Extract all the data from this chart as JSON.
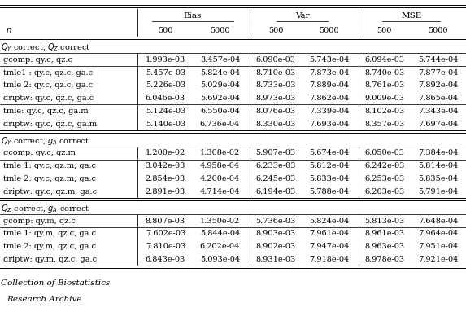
{
  "sections": [
    {
      "header": "$Q_Y$ correct, $Q_Z$ correct",
      "rows": [
        [
          "gcomp: qy.c, qz.c",
          "1.993e-03",
          "3.457e-04",
          "6.090e-03",
          "5.743e-04",
          "6.094e-03",
          "5.744e-04"
        ],
        [
          "tmle1 : qy.c, qz.c, ga.c",
          "5.457e-03",
          "5.824e-04",
          "8.710e-03",
          "7.873e-04",
          "8.740e-03",
          "7.877e-04"
        ],
        [
          "tmle 2: qy.c, qz.c, ga.c",
          "5.226e-03",
          "5.029e-04",
          "8.733e-03",
          "7.889e-04",
          "8.761e-03",
          "7.892e-04"
        ],
        [
          "driptw: qy.c, qz.c, ga.c",
          "6.046e-03",
          "5.692e-04",
          "8.973e-03",
          "7.862e-04",
          "9.009e-03",
          "7.865e-04"
        ],
        [
          "tmle: qy.c, qz.c, ga.m",
          "5.124e-03",
          "6.550e-04",
          "8.076e-03",
          "7.339e-04",
          "8.102e-03",
          "7.343e-04"
        ],
        [
          "driptw: qy.c, qz.c, ga.m",
          "5.140e-03",
          "6.736e-04",
          "8.330e-03",
          "7.693e-04",
          "8.357e-03",
          "7.697e-04"
        ]
      ],
      "group_breaks": [
        1,
        4
      ]
    },
    {
      "header": "$Q_Y$ correct, $g_A$ correct",
      "rows": [
        [
          "gcomp: qy.c, qz.m",
          "1.200e-02",
          "1.308e-02",
          "5.907e-03",
          "5.674e-04",
          "6.050e-03",
          "7.384e-04"
        ],
        [
          "tmle 1: qy.c, qz.m, ga.c",
          "3.042e-03",
          "4.958e-04",
          "6.233e-03",
          "5.812e-04",
          "6.242e-03",
          "5.814e-04"
        ],
        [
          "tmle 2: qy.c, qz.m, ga.c",
          "2.854e-03",
          "4.200e-04",
          "6.245e-03",
          "5.833e-04",
          "6.253e-03",
          "5.835e-04"
        ],
        [
          "driptw: qy.c, qz.m, ga.c",
          "2.891e-03",
          "4.714e-04",
          "6.194e-03",
          "5.788e-04",
          "6.203e-03",
          "5.791e-04"
        ]
      ],
      "group_breaks": [
        1
      ]
    },
    {
      "header": "$Q_Z$ correct, $g_A$ correct",
      "rows": [
        [
          "gcomp: qy.m, qz.c",
          "8.807e-03",
          "1.350e-02",
          "5.736e-03",
          "5.824e-04",
          "5.813e-03",
          "7.648e-04"
        ],
        [
          "tmle 1: qy.m, qz.c, ga.c",
          "7.602e-03",
          "5.844e-04",
          "8.903e-03",
          "7.961e-04",
          "8.961e-03",
          "7.964e-04"
        ],
        [
          "tmle 2: qy.m, qz.c, ga.c",
          "7.810e-03",
          "6.202e-04",
          "8.902e-03",
          "7.947e-04",
          "8.963e-03",
          "7.951e-04"
        ],
        [
          "driptw: qy.m, qz.c, ga.c",
          "6.843e-03",
          "5.093e-04",
          "8.931e-03",
          "7.918e-04",
          "8.978e-03",
          "7.921e-04"
        ]
      ],
      "group_breaks": [
        1
      ]
    }
  ],
  "bg_color": "#ffffff",
  "text_color": "#000000",
  "line_color": "#000000",
  "font_size": 7.0,
  "header_font_size": 7.5,
  "bottom_text_1": "Collection of Biostatistics",
  "bottom_text_2": "Research Archive"
}
